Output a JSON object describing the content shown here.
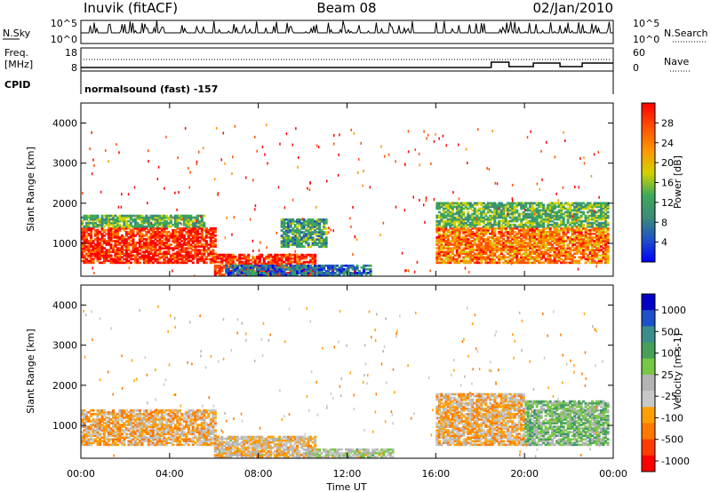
{
  "header": {
    "station": "Inuvik (fitACF)",
    "beam": "Beam 08",
    "date": "02/Jan/2010"
  },
  "top_panels": {
    "nsky_label": "N.Sky",
    "nsky_ticks": [
      "10^5",
      "10^0"
    ],
    "nsearch_label": "N.Search",
    "freq_label": "Freq.",
    "freq_unit": "[MHz]",
    "freq_ticks": [
      "18",
      "8"
    ],
    "nave_ticks": [
      "60",
      "0"
    ],
    "nave_label": "Nave",
    "cpid_label": "CPID",
    "cpid_text": "normalsound (fast) -157"
  },
  "colors": {
    "power_scale": [
      "#0000ff",
      "#1e50c8",
      "#3c8c78",
      "#3caa5a",
      "#d2d200",
      "#ff9600",
      "#ff5000",
      "#ff0000"
    ],
    "velocity_scale": [
      "#ff0000",
      "#ff3c00",
      "#ff7800",
      "#ffa000",
      "#c8c8c8",
      "#b4b4b4",
      "#78c846",
      "#46a05a",
      "#3c8c8c",
      "#1e50c8",
      "#0000c8"
    ]
  },
  "chart_data": [
    {
      "type": "heatmap",
      "name_panel": "power",
      "ylabel": "Slant Range [km]",
      "xlabel": "",
      "y_ticks": [
        "4000",
        "3000",
        "2000",
        "1000"
      ],
      "y_tick_values": [
        4000,
        3000,
        2000,
        1000
      ],
      "ylim": [
        180,
        4500
      ],
      "x_ticks": [
        "00:00",
        "04:00",
        "08:00",
        "12:00",
        "16:00",
        "20:00",
        "00:00"
      ],
      "xlim_hours": [
        0,
        24
      ],
      "colorbar_label": "Power [dB]",
      "colorbar_ticks": [
        "28",
        "24",
        "20",
        "16",
        "12",
        "8",
        "4"
      ],
      "colorbar_range": [
        0,
        32
      ],
      "echo_regions": [
        {
          "t0": 0.0,
          "t1": 6.0,
          "r0": 500,
          "r1": 1400,
          "level": 28
        },
        {
          "t0": 0.0,
          "t1": 5.5,
          "r0": 1400,
          "r1": 1700,
          "level": 14
        },
        {
          "t0": 6.0,
          "t1": 10.5,
          "r0": 200,
          "r1": 700,
          "level": 28
        },
        {
          "t0": 6.5,
          "t1": 13.0,
          "r0": 200,
          "r1": 450,
          "level": 8
        },
        {
          "t0": 16.0,
          "t1": 23.8,
          "r0": 500,
          "r1": 1400,
          "level": 24
        },
        {
          "t0": 16.0,
          "t1": 23.8,
          "r0": 1400,
          "r1": 2000,
          "level": 14
        },
        {
          "t0": 9.0,
          "t1": 11.0,
          "r0": 900,
          "r1": 1600,
          "level": 12
        }
      ]
    },
    {
      "type": "heatmap",
      "name_panel": "velocity",
      "ylabel": "Slant Range [km]",
      "xlabel": "Time UT",
      "y_ticks": [
        "4000",
        "3000",
        "2000",
        "1000"
      ],
      "y_tick_values": [
        4000,
        3000,
        2000,
        1000
      ],
      "ylim": [
        180,
        4500
      ],
      "x_ticks": [
        "00:00",
        "04:00",
        "08:00",
        "12:00",
        "16:00",
        "20:00",
        "00:00"
      ],
      "xlim_hours": [
        0,
        24
      ],
      "colorbar_label": "Velocity [m s-1]",
      "colorbar_ticks": [
        "1000",
        "500",
        "100",
        "25",
        "-25",
        "-100",
        "-500",
        "-1000"
      ],
      "echo_regions": [
        {
          "t0": 0.0,
          "t1": 6.0,
          "r0": 500,
          "r1": 1400,
          "level": -300
        },
        {
          "t0": 6.0,
          "t1": 10.5,
          "r0": 200,
          "r1": 700,
          "level": -200
        },
        {
          "t0": 10.0,
          "t1": 14.0,
          "r0": 200,
          "r1": 400,
          "level": 0
        },
        {
          "t0": 16.0,
          "t1": 20.0,
          "r0": 500,
          "r1": 1800,
          "level": -300
        },
        {
          "t0": 20.0,
          "t1": 23.8,
          "r0": 500,
          "r1": 1600,
          "level": 200
        }
      ]
    }
  ]
}
